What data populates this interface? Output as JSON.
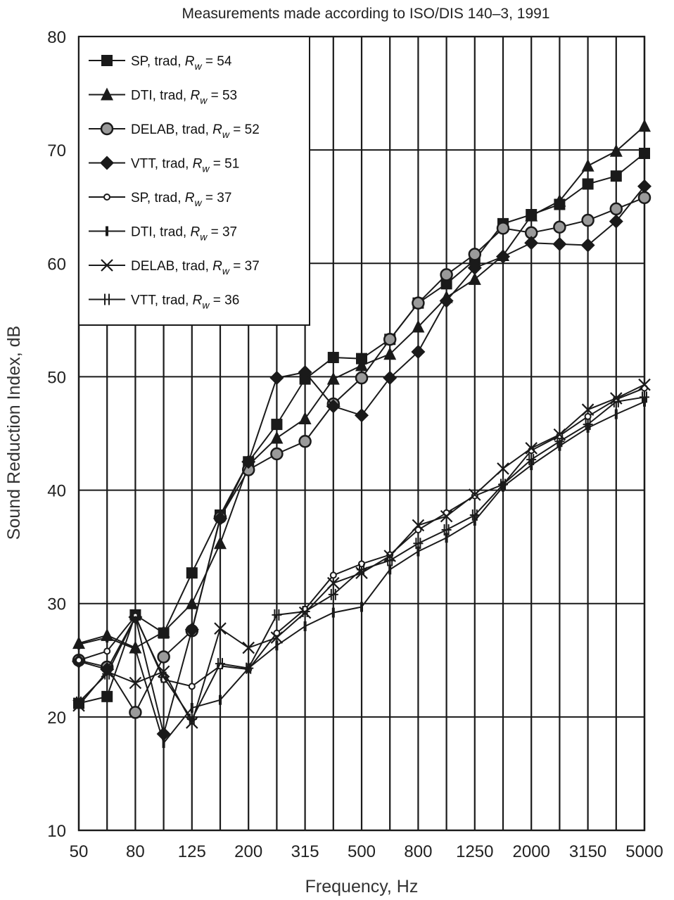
{
  "chart_data": {
    "type": "line",
    "title": "Measurements made according to ISO/DIS 140–3, 1991",
    "xlabel": "Frequency, Hz",
    "ylabel": "Sound Reduction Index, dB",
    "x_scale": "one-third octave bands (log)",
    "x": [
      50,
      63,
      80,
      100,
      125,
      160,
      200,
      250,
      315,
      400,
      500,
      630,
      800,
      1000,
      1250,
      1600,
      2000,
      2500,
      3150,
      4000,
      5000
    ],
    "x_tick_labels": [
      "50",
      "80",
      "125",
      "200",
      "315",
      "500",
      "800",
      "1250",
      "2000",
      "3150",
      "5000"
    ],
    "y_tick_labels": [
      "10",
      "20",
      "30",
      "40",
      "50",
      "60",
      "70",
      "80"
    ],
    "ylim": [
      10,
      80
    ],
    "grid": true,
    "legend_position": "top-left",
    "rw_symbol": "R",
    "rw_subscript": "w",
    "line_color": "#1a1a1a",
    "series": [
      {
        "name": "SP, trad,",
        "rw": "54",
        "marker": "filled-square",
        "values": [
          21.2,
          21.8,
          29.0,
          27.4,
          32.7,
          37.8,
          42.5,
          45.8,
          49.8,
          51.7,
          51.6,
          53.3,
          56.5,
          58.2,
          60.3,
          63.5,
          64.3,
          65.2,
          67.0,
          67.7,
          69.7
        ]
      },
      {
        "name": "DTI, trad,",
        "rw": "53",
        "marker": "filled-triangle",
        "values": [
          26.5,
          27.2,
          26.1,
          27.5,
          30.0,
          35.3,
          42.2,
          44.6,
          46.3,
          49.8,
          51.0,
          52.0,
          54.4,
          57.0,
          58.6,
          60.7,
          64.2,
          65.5,
          68.6,
          69.9,
          72.1
        ]
      },
      {
        "name": "DELAB, trad,",
        "rw": "52",
        "marker": "hatched-circle",
        "values": [
          25.0,
          24.4,
          20.4,
          25.3,
          27.6,
          37.6,
          41.8,
          43.2,
          44.3,
          47.6,
          49.9,
          53.3,
          56.5,
          59.0,
          60.8,
          63.1,
          62.7,
          63.2,
          63.8,
          64.8,
          65.8
        ]
      },
      {
        "name": "VTT, trad,",
        "rw": "51",
        "marker": "filled-diamond",
        "values": [
          24.9,
          24.2,
          28.8,
          18.5,
          27.7,
          37.5,
          42.5,
          49.9,
          50.4,
          47.4,
          46.6,
          49.9,
          52.2,
          56.7,
          59.6,
          60.6,
          61.8,
          61.7,
          61.6,
          63.7,
          66.8
        ]
      },
      {
        "name": "SP, trad,",
        "rw": "37",
        "marker": "open-circle",
        "values": [
          25.0,
          25.8,
          28.9,
          23.3,
          22.7,
          24.5,
          24.2,
          27.4,
          29.5,
          32.5,
          33.5,
          34.3,
          36.5,
          38.0,
          39.5,
          40.5,
          43.5,
          44.8,
          46.5,
          48.0,
          49.0
        ]
      },
      {
        "name": "DTI, trad,",
        "rw": "37",
        "marker": "vertical-tick",
        "values": [
          26.4,
          27.0,
          26.0,
          17.7,
          20.8,
          21.5,
          24.3,
          26.3,
          28.0,
          29.2,
          29.7,
          33.0,
          34.6,
          35.8,
          37.3,
          40.3,
          42.2,
          43.9,
          45.5,
          46.7,
          47.8
        ]
      },
      {
        "name": "DELAB, trad,",
        "rw": "37",
        "marker": "x-cross",
        "values": [
          21.0,
          24.0,
          23.0,
          24.0,
          19.5,
          27.8,
          26.1,
          27.0,
          29.2,
          31.8,
          32.7,
          34.2,
          36.9,
          37.7,
          39.6,
          41.9,
          43.7,
          44.9,
          47.1,
          48.1,
          49.3
        ]
      },
      {
        "name": "VTT, trad,",
        "rw": "36",
        "marker": "double-cross",
        "values": [
          21.3,
          23.8,
          28.8,
          23.5,
          19.8,
          24.7,
          24.3,
          29.0,
          29.3,
          30.8,
          33.0,
          33.8,
          35.3,
          36.5,
          37.8,
          40.5,
          42.7,
          44.3,
          45.8,
          47.8,
          48.2
        ]
      }
    ]
  }
}
